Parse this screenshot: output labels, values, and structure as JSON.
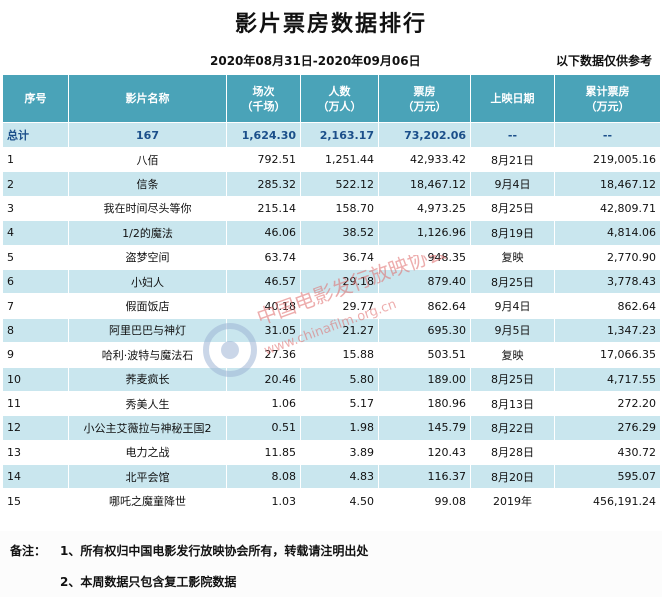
{
  "header": {
    "title": "影片票房数据排行",
    "date_range": "2020年08月31日-2020年09月06日",
    "disclaimer": "以下数据仅供参考"
  },
  "table": {
    "columns": {
      "rank": "序号",
      "name": "影片名称",
      "shows": "场次\n（千场）",
      "audience": "人数\n（万人）",
      "gross": "票房\n（万元）",
      "release": "上映日期",
      "cumulative": "累计票房\n（万元）"
    },
    "total": {
      "rank": "总计",
      "name": "167",
      "shows": "1,624.30",
      "audience": "2,163.17",
      "gross": "73,202.06",
      "release": "--",
      "cumulative": "--"
    },
    "rows": [
      {
        "rank": "1",
        "name": "八佰",
        "shows": "792.51",
        "audience": "1,251.44",
        "gross": "42,933.42",
        "release": "8月21日",
        "cumulative": "219,005.16"
      },
      {
        "rank": "2",
        "name": "信条",
        "shows": "285.32",
        "audience": "522.12",
        "gross": "18,467.12",
        "release": "9月4日",
        "cumulative": "18,467.12"
      },
      {
        "rank": "3",
        "name": "我在时间尽头等你",
        "shows": "215.14",
        "audience": "158.70",
        "gross": "4,973.25",
        "release": "8月25日",
        "cumulative": "42,809.71"
      },
      {
        "rank": "4",
        "name": "1/2的魔法",
        "shows": "46.06",
        "audience": "38.52",
        "gross": "1,126.96",
        "release": "8月19日",
        "cumulative": "4,814.06"
      },
      {
        "rank": "5",
        "name": "盗梦空间",
        "shows": "63.74",
        "audience": "36.74",
        "gross": "948.35",
        "release": "复映",
        "cumulative": "2,770.90"
      },
      {
        "rank": "6",
        "name": "小妇人",
        "shows": "46.57",
        "audience": "29.18",
        "gross": "879.40",
        "release": "8月25日",
        "cumulative": "3,778.43"
      },
      {
        "rank": "7",
        "name": "假面饭店",
        "shows": "40.18",
        "audience": "29.77",
        "gross": "862.64",
        "release": "9月4日",
        "cumulative": "862.64"
      },
      {
        "rank": "8",
        "name": "阿里巴巴与神灯",
        "shows": "31.05",
        "audience": "21.27",
        "gross": "695.30",
        "release": "9月5日",
        "cumulative": "1,347.23"
      },
      {
        "rank": "9",
        "name": "哈利·波特与魔法石",
        "shows": "27.36",
        "audience": "15.88",
        "gross": "503.51",
        "release": "复映",
        "cumulative": "17,066.35"
      },
      {
        "rank": "10",
        "name": "荞麦疯长",
        "shows": "20.46",
        "audience": "5.80",
        "gross": "189.00",
        "release": "8月25日",
        "cumulative": "4,717.55"
      },
      {
        "rank": "11",
        "name": "秀美人生",
        "shows": "1.06",
        "audience": "5.17",
        "gross": "180.96",
        "release": "8月13日",
        "cumulative": "272.20"
      },
      {
        "rank": "12",
        "name": "小公主艾薇拉与神秘王国2",
        "shows": "0.51",
        "audience": "1.98",
        "gross": "145.79",
        "release": "8月22日",
        "cumulative": "276.29"
      },
      {
        "rank": "13",
        "name": "电力之战",
        "shows": "11.85",
        "audience": "3.89",
        "gross": "120.43",
        "release": "8月28日",
        "cumulative": "430.72"
      },
      {
        "rank": "14",
        "name": "北平会馆",
        "shows": "8.08",
        "audience": "4.83",
        "gross": "116.37",
        "release": "8月20日",
        "cumulative": "595.07"
      },
      {
        "rank": "15",
        "name": "哪吒之魔童降世",
        "shows": "1.03",
        "audience": "4.50",
        "gross": "99.08",
        "release": "2019年",
        "cumulative": "456,191.24"
      }
    ]
  },
  "notes": {
    "label": "备注：",
    "items": [
      "1、所有权归中国电影发行放映协会所有，转载请注明出处",
      "2、本周数据只包含复工影院数据"
    ]
  },
  "watermark": {
    "text": "中国电影发行放映协会",
    "url": "www.chinafilm.org.cn"
  },
  "colors": {
    "header_bg": "#4aa3b8",
    "band_bg": "#c9e6ee",
    "total_text": "#1b4f8a",
    "watermark": "#e06b6b"
  }
}
